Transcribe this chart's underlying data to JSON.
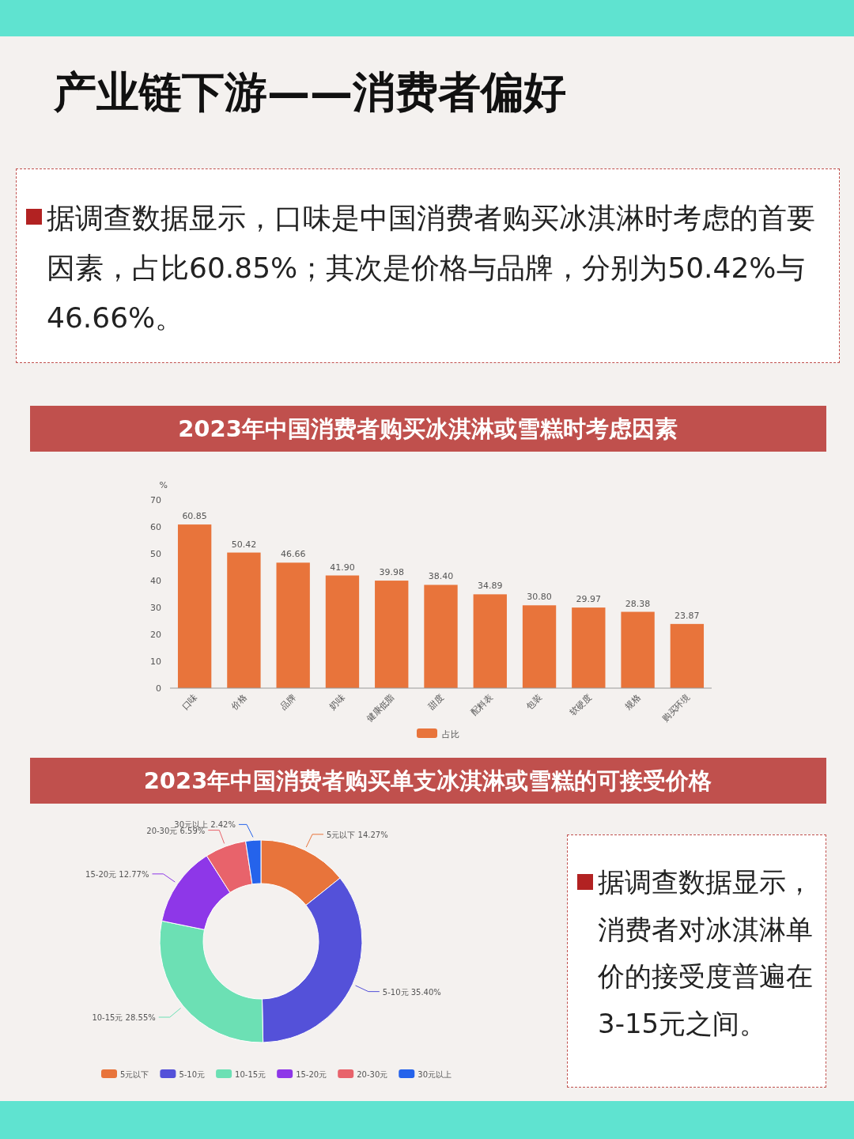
{
  "chart_data": [
    {
      "type": "other",
      "title": "产业链下游——消费者偏好",
      "annotations": [
        "据调查数据显示，口味是中国消费者购买冰淇淋时考虑的首要因素，占比60.85%；其次是价格与品牌，分别为50.42%与46.66%。"
      ]
    },
    {
      "type": "bar",
      "title": "2023年中国消费者购买冰淇淋或雪糕时考虑因素",
      "ylabel": "%",
      "categories": [
        "口味",
        "价格",
        "品牌",
        "奶味",
        "健康低脂",
        "甜度",
        "配料表",
        "包装",
        "软硬度",
        "规格",
        "购买环境"
      ],
      "series": [
        {
          "name": "占比",
          "color": "#e8743b",
          "values": [
            60.85,
            50.42,
            46.66,
            41.9,
            39.98,
            38.4,
            34.89,
            30.8,
            29.97,
            28.38,
            23.87
          ],
          "value_labels": [
            "60.85",
            "50.42",
            "46.66",
            "41.90",
            "39.98",
            "38.40",
            "34.89",
            "30.80",
            "29.97",
            "28.38",
            "23.87"
          ]
        }
      ],
      "ylim": [
        0,
        70
      ],
      "yticks": [
        0,
        10,
        20,
        30,
        40,
        50,
        60,
        70
      ],
      "grid": false,
      "legend": "bottom"
    },
    {
      "type": "donut",
      "title": "2023年中国消费者购买单支冰淇淋或雪糕的可接受价格",
      "categories": [
        "5元以下",
        "5-10元",
        "10-15元",
        "15-20元",
        "20-30元",
        "30元以上"
      ],
      "values": [
        14.27,
        35.4,
        28.55,
        12.77,
        6.59,
        2.42
      ],
      "value_labels": [
        "5元以下 14.27%",
        "5-10元 35.40%",
        "10-15元 28.55%",
        "15-20元 12.77%",
        "20-30元 6.59%",
        "30元以上 2.42%"
      ],
      "colors": [
        "#e8743b",
        "#5451d9",
        "#6ce0b4",
        "#8e37e8",
        "#e8636b",
        "#2563eb"
      ],
      "legend": "bottom",
      "annotations": [
        "据调查数据显示，消费者对冰淇淋单价的接受度普遍在3-15元之间。"
      ]
    }
  ]
}
